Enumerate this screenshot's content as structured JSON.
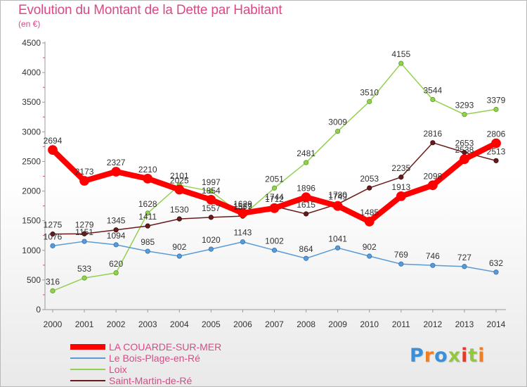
{
  "header": {
    "title": "Evolution du Montant de la Dette par Habitant",
    "subtitle": "(en €)"
  },
  "logo": {
    "text": "Proxiti",
    "colors": [
      "#3a8fd6",
      "#f07e22",
      "#3a8fd6",
      "#92c83e",
      "#e23a2c",
      "#92c83e",
      "#f07e22"
    ]
  },
  "chart_data": {
    "type": "line",
    "title": "Evolution du Montant de la Dette par Habitant",
    "subtitle": "(en €)",
    "x": [
      2000,
      2001,
      2002,
      2003,
      2004,
      2005,
      2006,
      2007,
      2008,
      2009,
      2010,
      2011,
      2012,
      2013,
      2014
    ],
    "ylim": [
      0,
      4500
    ],
    "yticks": [
      0,
      500,
      1000,
      1500,
      2000,
      2500,
      3000,
      3500,
      4000,
      4500
    ],
    "grid": false,
    "legend_position": "bottom-left",
    "series": [
      {
        "name": "LA COUARDE-SUR-MER",
        "color": "#ff0000",
        "values": [
          2694,
          2173,
          2327,
          2210,
          2025,
          1854,
          1629,
          1712,
          1896,
          1749,
          1485,
          1913,
          2098,
          2538,
          2806
        ]
      },
      {
        "name": "Le Bois-Plage-en-Ré",
        "color": "#5b9bd5",
        "values": [
          1076,
          1151,
          1094,
          985,
          902,
          1020,
          1143,
          1002,
          864,
          1041,
          902,
          769,
          746,
          727,
          632
        ]
      },
      {
        "name": "Loix",
        "color": "#92d050",
        "values": [
          316,
          533,
          620,
          1628,
          2101,
          1997,
          1589,
          2051,
          2481,
          3009,
          3510,
          4155,
          3544,
          3293,
          3379
        ]
      },
      {
        "name": "Saint-Martin-de-Ré",
        "color": "#6b1a1a",
        "values": [
          1275,
          1279,
          1345,
          1411,
          1530,
          1557,
          1577,
          1744,
          1615,
          1780,
          2053,
          2235,
          2816,
          2653,
          2513
        ]
      }
    ]
  }
}
